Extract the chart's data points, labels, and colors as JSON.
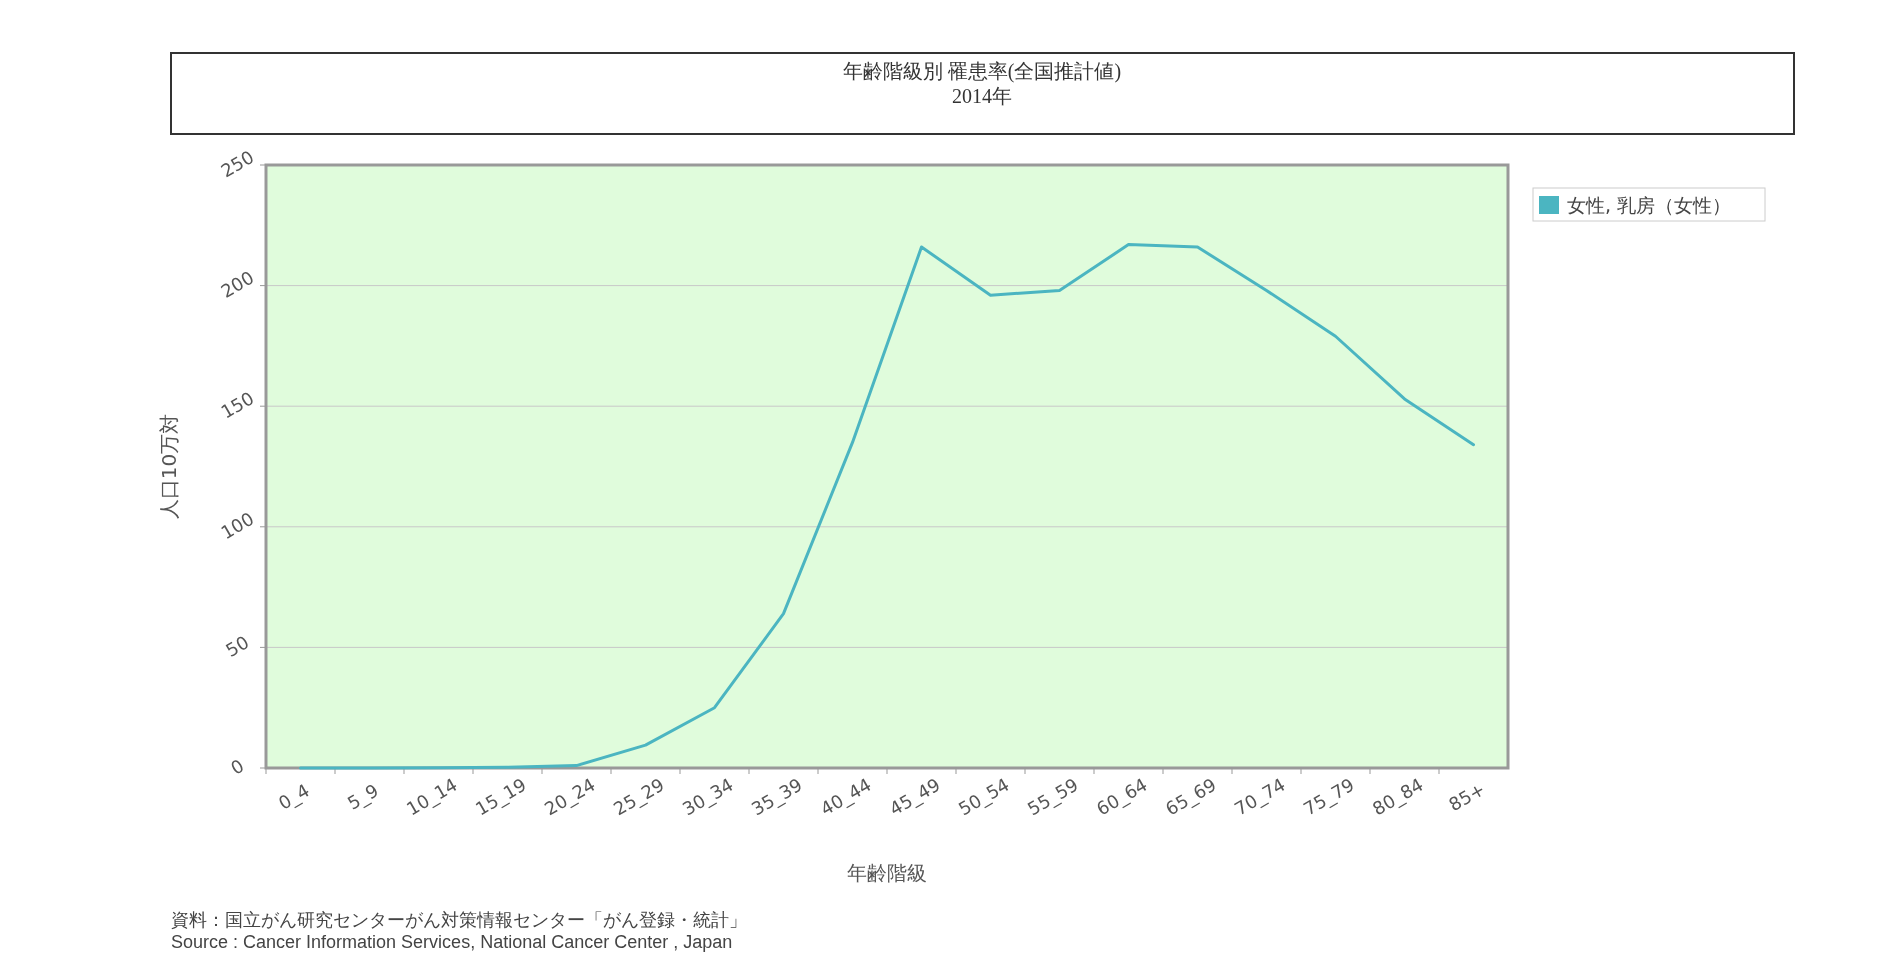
{
  "chart_data": {
    "type": "line",
    "title": "年齢階級別 罹患率(全国推計値)",
    "subtitle": "2014年",
    "xlabel": "年齢階級",
    "ylabel": "人口10万対",
    "categories": [
      "0_4",
      "5_9",
      "10_14",
      "15_19",
      "20_24",
      "25_29",
      "30_34",
      "35_39",
      "40_44",
      "45_49",
      "50_54",
      "55_59",
      "60_64",
      "65_69",
      "70_74",
      "75_79",
      "80_84",
      "85+"
    ],
    "series": [
      {
        "name": "女性, 乳房（女性）",
        "color": "#4bb5c1",
        "values": [
          0,
          0,
          0.1,
          0.3,
          1,
          9.5,
          25,
          64,
          135,
          216,
          196,
          198,
          217,
          216,
          198,
          179,
          153,
          134
        ]
      }
    ],
    "ylim": [
      0,
      250
    ],
    "yticks": [
      0,
      50,
      100,
      150,
      200,
      250
    ],
    "grid": "y",
    "legend": "top right",
    "marker": "none",
    "line_style": "solid",
    "annotations": [
      "資料：国立がん研究センターがん対策情報センター「がん登録・統計」",
      "Source : Cancer Information Services, National Cancer Center , Japan"
    ]
  }
}
